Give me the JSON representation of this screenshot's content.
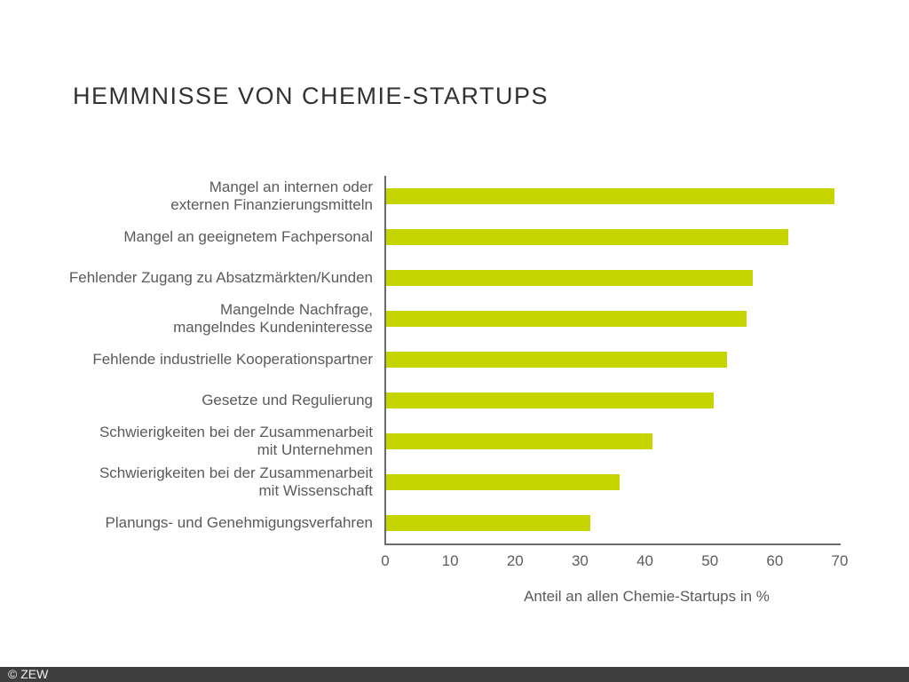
{
  "footer": {
    "copyright": "© ZEW",
    "bar_color": "#3e3e3e",
    "text_color": "#f2f2f2"
  },
  "chart_data": {
    "type": "bar",
    "orientation": "horizontal",
    "title": "HEMMNISSE VON CHEMIE-STARTUPS",
    "xlabel": "Anteil an allen Chemie-Startups in %",
    "xlim": [
      0,
      70
    ],
    "xticks": [
      0,
      10,
      20,
      30,
      40,
      50,
      60,
      70
    ],
    "grid": false,
    "legend": false,
    "bar_color": "#c6d400",
    "axis_color": "#6b6b6b",
    "label_color": "#5a5a5a",
    "categories": [
      "Mangel an internen oder externen Finanzierungsmitteln",
      "Mangel an geeignetem Fachpersonal",
      "Fehlender Zugang zu Absatzmärkten/Kunden",
      "Mangelnde Nachfrage, mangelndes Kundeninteresse",
      "Fehlende industrielle Kooperationspartner",
      "Gesetze und Regulierung",
      "Schwierigkeiten bei der Zusammenarbeit mit Unternehmen",
      "Schwierigkeiten bei der Zusammenarbeit mit Wissenschaft",
      "Planungs- und Genehmigungsverfahren"
    ],
    "label_lines": [
      [
        "Mangel an internen oder",
        "externen Finanzierungsmitteln"
      ],
      [
        "Mangel an geeignetem Fachpersonal"
      ],
      [
        "Fehlender Zugang zu Absatzmärkten/Kunden"
      ],
      [
        "Mangelnde Nachfrage,",
        "mangelndes Kundeninteresse"
      ],
      [
        "Fehlende industrielle Kooperationspartner"
      ],
      [
        "Gesetze und Regulierung"
      ],
      [
        "Schwierigkeiten bei der Zusammenarbeit",
        "mit Unternehmen"
      ],
      [
        "Schwierigkeiten bei der Zusammenarbeit",
        "mit Wissenschaft"
      ],
      [
        "Planungs- und Genehmigungsverfahren"
      ]
    ],
    "values": [
      69,
      62,
      56.5,
      55.5,
      52.5,
      50.5,
      41,
      36,
      31.5
    ]
  }
}
